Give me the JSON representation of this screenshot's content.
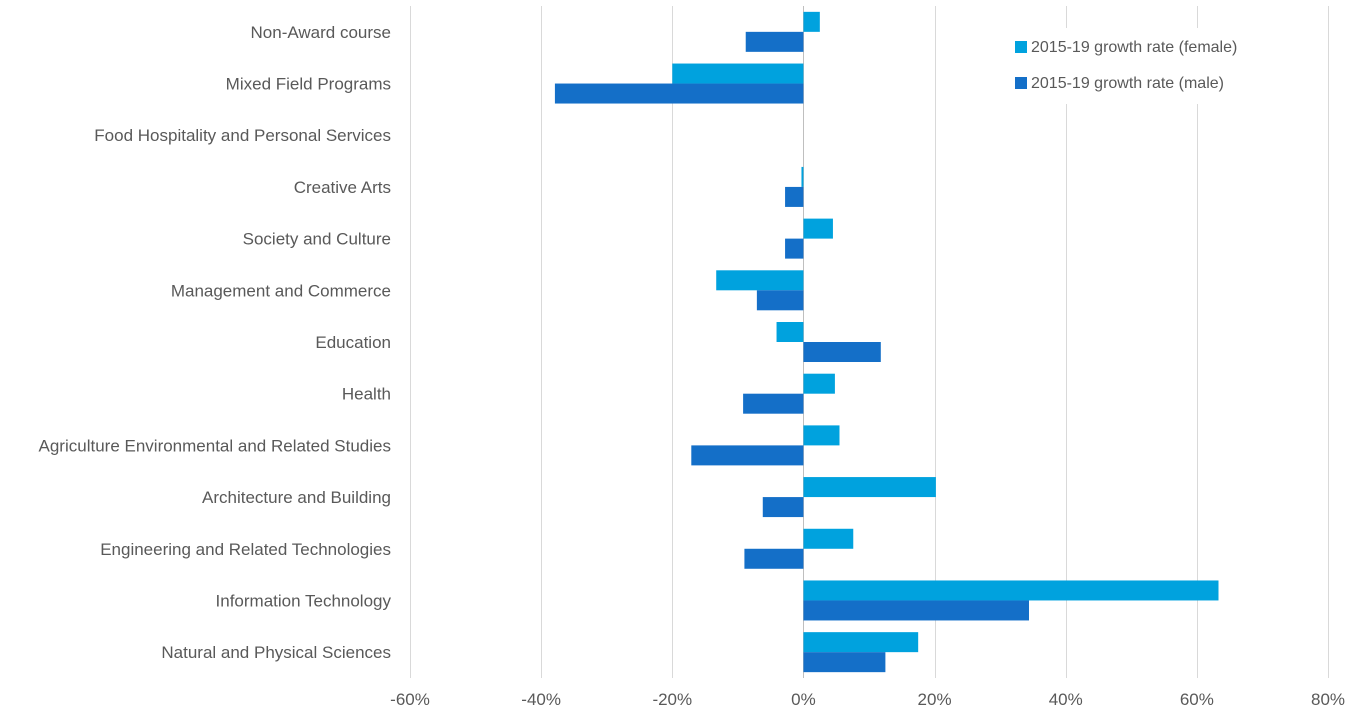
{
  "chart_data": {
    "type": "bar",
    "orientation": "horizontal",
    "title": "",
    "xlabel": "",
    "ylabel": "",
    "categories": [
      "Non-Award course",
      "Mixed Field Programs",
      "Food Hospitality and Personal Services",
      "Creative Arts",
      "Society and Culture",
      "Management and Commerce",
      "Education",
      "Health",
      "Agriculture Environmental and Related Studies",
      "Architecture and Building",
      "Engineering and Related Technologies",
      "Information Technology",
      "Natural and Physical Sciences"
    ],
    "series": [
      {
        "name": "2015-19 growth rate (female)",
        "color": "#00a2de",
        "values": [
          2.5,
          -20,
          null,
          -0.3,
          4.5,
          -13.3,
          -4.1,
          4.8,
          5.5,
          20.2,
          7.6,
          63.3,
          17.5
        ]
      },
      {
        "name": "2015-19 growth rate (male)",
        "color": "#146fc8",
        "values": [
          -8.8,
          -37.9,
          null,
          -2.8,
          -2.8,
          -7.1,
          11.8,
          -9.2,
          -17.1,
          -6.2,
          -9,
          34.4,
          12.5
        ]
      }
    ],
    "xlim": [
      -60,
      80
    ],
    "xticks": [
      -60,
      -40,
      -20,
      0,
      20,
      40,
      60,
      80
    ],
    "tick_suffix": "%",
    "grid": true,
    "legend_position": "top-right"
  }
}
